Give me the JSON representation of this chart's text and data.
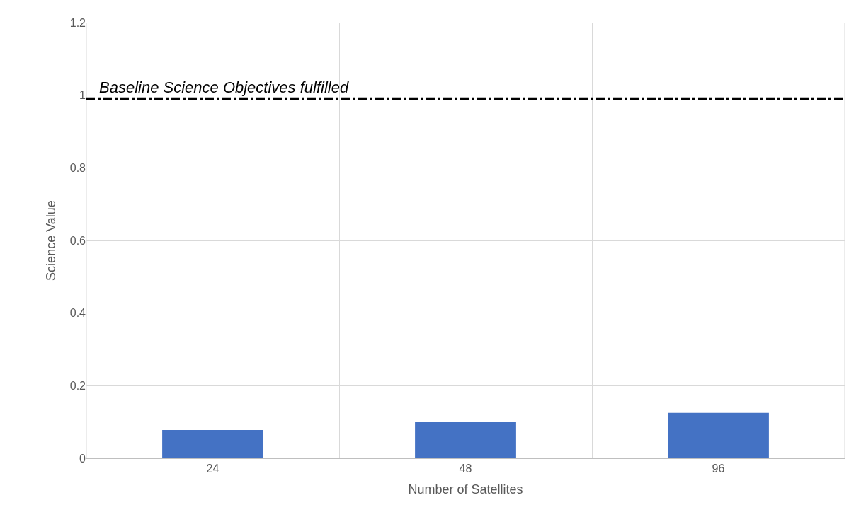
{
  "chart_data": {
    "type": "bar",
    "categories": [
      "24",
      "48",
      "96"
    ],
    "values": [
      0.078,
      0.1,
      0.125
    ],
    "color": "#4472c4",
    "xlabel": "Number of Satellites",
    "ylabel": "Science Value",
    "ylim": [
      0,
      1.2
    ],
    "yticks": [
      0,
      0.2,
      0.4,
      0.6,
      0.8,
      1,
      1.2
    ],
    "grid": true,
    "ref_lines": [
      {
        "axis": "y",
        "value": 0.99,
        "label": "Baseline Science Objectives fulfilled",
        "color": "#000000",
        "line_style": "dashed"
      }
    ]
  }
}
